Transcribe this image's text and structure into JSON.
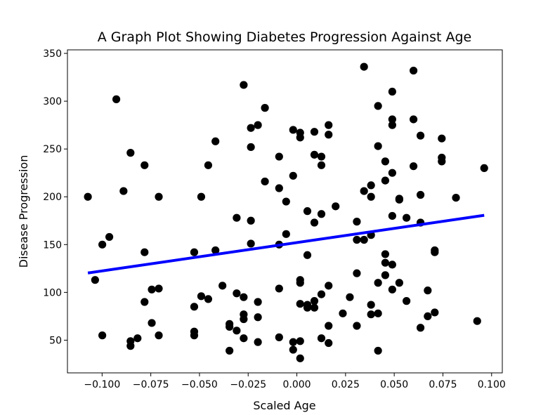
{
  "chart_data": {
    "type": "scatter",
    "title": "A Graph Plot Showing Diabetes Progression Against Age",
    "xlabel": "Scaled Age",
    "ylabel": "Disease Progression",
    "xlim": [
      -0.1178,
      0.1055
    ],
    "ylim": [
      15.8,
      353.7
    ],
    "xticks": [
      -0.1,
      -0.075,
      -0.05,
      -0.025,
      0.0,
      0.025,
      0.05,
      0.075,
      0.1
    ],
    "xtick_labels": [
      "−0.100",
      "−0.075",
      "−0.050",
      "−0.025",
      "0.000",
      "0.025",
      "0.050",
      "0.075",
      "0.100"
    ],
    "yticks": [
      50,
      100,
      150,
      200,
      250,
      300,
      350
    ],
    "ytick_labels": [
      "50",
      "100",
      "150",
      "200",
      "250",
      "300",
      "350"
    ],
    "grid": false,
    "series": [
      {
        "kind": "scatter",
        "color": "#000000",
        "points": [
          [
            -0.1073,
            200
          ],
          [
            -0.1036,
            113
          ],
          [
            -0.0999,
            55
          ],
          [
            -0.0999,
            150
          ],
          [
            -0.0963,
            158
          ],
          [
            -0.0927,
            302
          ],
          [
            -0.089,
            206
          ],
          [
            -0.0854,
            246
          ],
          [
            -0.0854,
            49
          ],
          [
            -0.0854,
            44
          ],
          [
            -0.0818,
            52
          ],
          [
            -0.0782,
            233
          ],
          [
            -0.0782,
            142
          ],
          [
            -0.0782,
            90
          ],
          [
            -0.0745,
            103
          ],
          [
            -0.0745,
            68
          ],
          [
            -0.0709,
            200
          ],
          [
            -0.0709,
            104
          ],
          [
            -0.0709,
            55
          ],
          [
            -0.0527,
            142
          ],
          [
            -0.0527,
            85
          ],
          [
            -0.0527,
            59
          ],
          [
            -0.0527,
            55
          ],
          [
            -0.0491,
            200
          ],
          [
            -0.0491,
            96
          ],
          [
            -0.0455,
            233
          ],
          [
            -0.0455,
            93
          ],
          [
            -0.0418,
            258
          ],
          [
            -0.0418,
            144
          ],
          [
            -0.0382,
            107
          ],
          [
            -0.0346,
            67
          ],
          [
            -0.0346,
            64
          ],
          [
            -0.0346,
            39
          ],
          [
            -0.0309,
            178
          ],
          [
            -0.0309,
            99
          ],
          [
            -0.0309,
            60
          ],
          [
            -0.0273,
            317
          ],
          [
            -0.0273,
            95
          ],
          [
            -0.0273,
            77
          ],
          [
            -0.0273,
            72
          ],
          [
            -0.0273,
            52
          ],
          [
            -0.0236,
            272
          ],
          [
            -0.0236,
            252
          ],
          [
            -0.0236,
            175
          ],
          [
            -0.0236,
            151
          ],
          [
            -0.02,
            275
          ],
          [
            -0.02,
            90
          ],
          [
            -0.02,
            74
          ],
          [
            -0.02,
            48
          ],
          [
            -0.0164,
            293
          ],
          [
            -0.0164,
            216
          ],
          [
            -0.0091,
            242
          ],
          [
            -0.0091,
            209
          ],
          [
            -0.0091,
            150
          ],
          [
            -0.0091,
            104
          ],
          [
            -0.0091,
            53
          ],
          [
            -0.0055,
            195
          ],
          [
            -0.0055,
            161
          ],
          [
            -0.0019,
            270
          ],
          [
            -0.0019,
            222
          ],
          [
            -0.0019,
            48
          ],
          [
            -0.0019,
            40
          ],
          [
            0.0017,
            267
          ],
          [
            0.0017,
            262
          ],
          [
            0.0017,
            113
          ],
          [
            0.0017,
            110
          ],
          [
            0.0017,
            88
          ],
          [
            0.0017,
            49
          ],
          [
            0.0017,
            31
          ],
          [
            0.0054,
            185
          ],
          [
            0.0054,
            139
          ],
          [
            0.0054,
            87
          ],
          [
            0.0054,
            84
          ],
          [
            0.009,
            268
          ],
          [
            0.009,
            244
          ],
          [
            0.009,
            173
          ],
          [
            0.009,
            91
          ],
          [
            0.009,
            84
          ],
          [
            0.0126,
            242
          ],
          [
            0.0126,
            233
          ],
          [
            0.0126,
            182
          ],
          [
            0.0126,
            98
          ],
          [
            0.0126,
            52
          ],
          [
            0.0163,
            275
          ],
          [
            0.0163,
            265
          ],
          [
            0.0163,
            107
          ],
          [
            0.0163,
            65
          ],
          [
            0.0163,
            47
          ],
          [
            0.0199,
            190
          ],
          [
            0.0236,
            78
          ],
          [
            0.0272,
            95
          ],
          [
            0.0308,
            174
          ],
          [
            0.0308,
            155
          ],
          [
            0.0308,
            120
          ],
          [
            0.0308,
            65
          ],
          [
            0.0345,
            336
          ],
          [
            0.0345,
            206
          ],
          [
            0.0345,
            155
          ],
          [
            0.0381,
            212
          ],
          [
            0.0381,
            200
          ],
          [
            0.0381,
            160
          ],
          [
            0.0381,
            87
          ],
          [
            0.0381,
            77
          ],
          [
            0.0417,
            295
          ],
          [
            0.0417,
            253
          ],
          [
            0.0417,
            110
          ],
          [
            0.0417,
            78
          ],
          [
            0.0417,
            39
          ],
          [
            0.0454,
            237
          ],
          [
            0.0454,
            217
          ],
          [
            0.0454,
            140
          ],
          [
            0.0454,
            131
          ],
          [
            0.0454,
            118
          ],
          [
            0.049,
            310
          ],
          [
            0.049,
            281
          ],
          [
            0.049,
            275
          ],
          [
            0.049,
            225
          ],
          [
            0.049,
            180
          ],
          [
            0.049,
            129
          ],
          [
            0.049,
            103
          ],
          [
            0.0526,
            198
          ],
          [
            0.0526,
            197
          ],
          [
            0.0526,
            110
          ],
          [
            0.0563,
            178
          ],
          [
            0.0563,
            91
          ],
          [
            0.0599,
            332
          ],
          [
            0.0599,
            281
          ],
          [
            0.0599,
            232
          ],
          [
            0.0635,
            264
          ],
          [
            0.0635,
            202
          ],
          [
            0.0635,
            173
          ],
          [
            0.0635,
            63
          ],
          [
            0.0672,
            102
          ],
          [
            0.0672,
            75
          ],
          [
            0.0708,
            144
          ],
          [
            0.0708,
            142
          ],
          [
            0.0708,
            79
          ],
          [
            0.0744,
            261
          ],
          [
            0.0744,
            241
          ],
          [
            0.0744,
            237
          ],
          [
            0.0817,
            199
          ],
          [
            0.0926,
            70
          ],
          [
            0.0962,
            230
          ]
        ]
      },
      {
        "kind": "line",
        "color": "#0000ff",
        "points": [
          [
            -0.1073,
            120.3
          ],
          [
            0.0962,
            180.6
          ]
        ]
      }
    ]
  }
}
